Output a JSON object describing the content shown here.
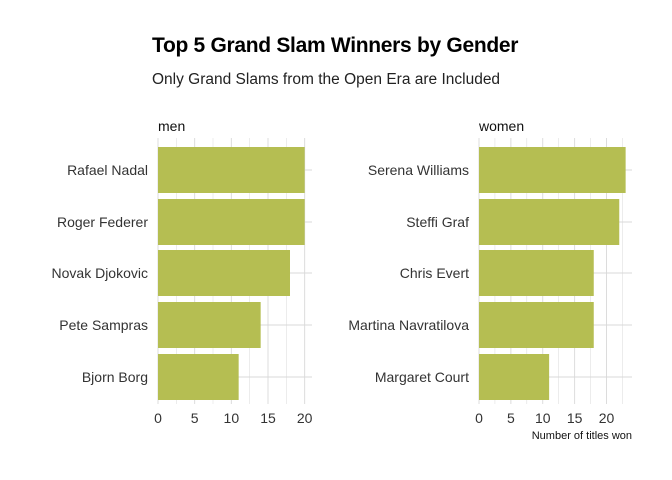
{
  "title": "Top 5 Grand Slam Winners by Gender",
  "subtitle": "Only Grand Slams from the Open Era are Included",
  "colors": {
    "bar": "#b5be52",
    "grid": "#d9d9d9",
    "text": "#333333"
  },
  "chart_data": {
    "type": "bar",
    "orientation": "horizontal",
    "xlabel": "Number of titles won",
    "grid": true,
    "facets": [
      {
        "name": "men",
        "categories": [
          "Rafael Nadal",
          "Roger Federer",
          "Novak Djokovic",
          "Pete Sampras",
          "Bjorn Borg"
        ],
        "values": [
          20,
          20,
          18,
          14,
          11
        ],
        "xticks": [
          0,
          5,
          10,
          15,
          20
        ],
        "xlim": [
          0,
          21
        ]
      },
      {
        "name": "women",
        "categories": [
          "Serena Williams",
          "Steffi Graf",
          "Chris Evert",
          "Martina Navratilova",
          "Margaret Court"
        ],
        "values": [
          23,
          22,
          18,
          18,
          11
        ],
        "xticks": [
          0,
          5,
          10,
          15,
          20
        ],
        "xlim": [
          0,
          24
        ]
      }
    ]
  }
}
